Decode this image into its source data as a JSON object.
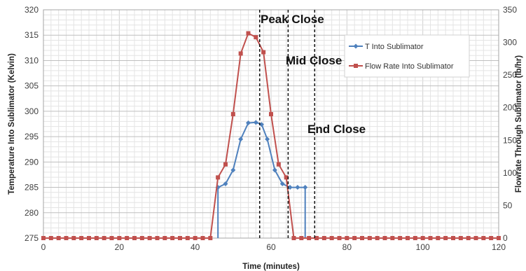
{
  "chart_data": {
    "type": "line",
    "xlabel": "Time (minutes)",
    "ylabel_left": "Temperature Into Sublimator (Kelvin)",
    "ylabel_right": "Flowrate Through Sublimator (lb/hr)",
    "xlim": [
      0,
      120
    ],
    "ylim_left": [
      275,
      320
    ],
    "ylim_right": [
      0,
      350
    ],
    "x_ticks": [
      "0",
      "20",
      "40",
      "60",
      "80",
      "100",
      "120"
    ],
    "y_left_ticks": [
      "275",
      "280",
      "285",
      "290",
      "295",
      "300",
      "305",
      "310",
      "315",
      "320"
    ],
    "y_right_ticks": [
      "0",
      "50",
      "100",
      "150",
      "200",
      "250",
      "300",
      "350"
    ],
    "grid": true,
    "legend_position": "top-right",
    "colors": {
      "temperature": "#4f81bd",
      "flow": "#c0504d"
    },
    "series": [
      {
        "name": "T Into Sublimator",
        "axis": "left",
        "marker": "diamond",
        "x": [
          46,
          46,
          48,
          50,
          52,
          54,
          56,
          57.5,
          59,
          61,
          63,
          65,
          67,
          69,
          69
        ],
        "y": [
          275,
          285,
          285.7,
          288.4,
          294.5,
          297.7,
          297.8,
          297.4,
          294.5,
          288.4,
          285.7,
          285,
          285,
          285,
          275
        ]
      },
      {
        "name": "Flow Rate Into Sublimator",
        "axis": "right",
        "marker": "square",
        "x": [
          0,
          2,
          4,
          6,
          8,
          10,
          12,
          14,
          16,
          18,
          20,
          22,
          24,
          26,
          28,
          30,
          32,
          34,
          36,
          38,
          40,
          42,
          44,
          46,
          48,
          50,
          52,
          54,
          56,
          58,
          60,
          62,
          64,
          66,
          68,
          70,
          72,
          74,
          76,
          78,
          80,
          82,
          84,
          86,
          88,
          90,
          92,
          94,
          96,
          98,
          100,
          102,
          104,
          106,
          108,
          110,
          112,
          114,
          116,
          118,
          120
        ],
        "y": [
          0,
          0,
          0,
          0,
          0,
          0,
          0,
          0,
          0,
          0,
          0,
          0,
          0,
          0,
          0,
          0,
          0,
          0,
          0,
          0,
          0,
          0,
          0,
          93,
          113,
          190,
          283,
          314,
          308,
          285,
          190,
          113,
          93,
          0,
          0,
          0,
          0,
          0,
          0,
          0,
          0,
          0,
          0,
          0,
          0,
          0,
          0,
          0,
          0,
          0,
          0,
          0,
          0,
          0,
          0,
          0,
          0,
          0,
          0,
          0,
          0
        ]
      }
    ],
    "vlines": [
      {
        "label": "Peak Close",
        "x": 57
      },
      {
        "label": "Mid Close",
        "x": 64.5
      },
      {
        "label": "End Close",
        "x": 71.5
      }
    ]
  }
}
